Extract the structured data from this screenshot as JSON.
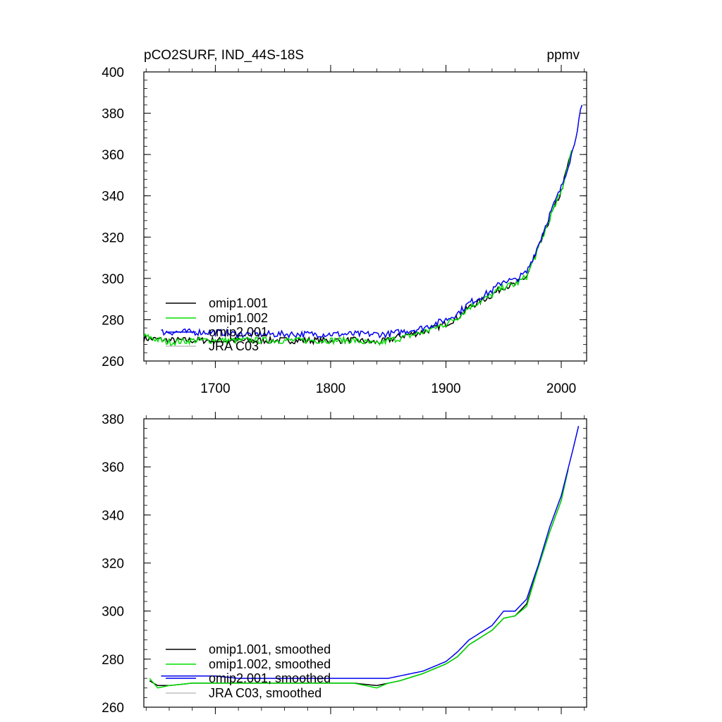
{
  "chart_data": [
    {
      "type": "line",
      "title": "pCO2SURF, IND_44S-18S",
      "units": "ppmv",
      "xlim": [
        1638,
        2022
      ],
      "ylim": [
        260,
        400
      ],
      "yticks": [
        260,
        280,
        300,
        320,
        340,
        360,
        380,
        400
      ],
      "xticks": [
        1700,
        1800,
        1900,
        2000
      ],
      "xtick_labels_shown": true,
      "legend": "bottom-left",
      "series": [
        {
          "name": "omip1.001",
          "color": "#000000",
          "x": [
            1638,
            1660,
            1680,
            1700,
            1720,
            1740,
            1760,
            1780,
            1800,
            1820,
            1840,
            1850,
            1860,
            1880,
            1900,
            1910,
            1920,
            1930,
            1940,
            1950,
            1960,
            1970,
            1980,
            1990,
            2000,
            2009
          ],
          "y": [
            271,
            270,
            270,
            270,
            270,
            270,
            270,
            270,
            270,
            270,
            269,
            270,
            272,
            274,
            278,
            281,
            286,
            289,
            292,
            296,
            297,
            301,
            314,
            329,
            342,
            362
          ]
        },
        {
          "name": "omip1.002",
          "color": "#00dd00",
          "x": [
            1638,
            1660,
            1680,
            1700,
            1720,
            1740,
            1760,
            1780,
            1800,
            1820,
            1840,
            1850,
            1860,
            1880,
            1900,
            1910,
            1920,
            1930,
            1940,
            1950,
            1960,
            1970,
            1980,
            1990,
            2000,
            2009
          ],
          "y": [
            272,
            269,
            270,
            270,
            270,
            270,
            270,
            270,
            270,
            270,
            268,
            270,
            271,
            274,
            278,
            281,
            286,
            289,
            292,
            296,
            297,
            301,
            314,
            329,
            342,
            362
          ]
        },
        {
          "name": "omip2.001",
          "color": "#0000ee",
          "x": [
            1653,
            1660,
            1680,
            1700,
            1720,
            1740,
            1760,
            1780,
            1800,
            1820,
            1840,
            1850,
            1860,
            1880,
            1900,
            1910,
            1920,
            1930,
            1940,
            1950,
            1960,
            1970,
            1980,
            1990,
            2000,
            2010,
            2018
          ],
          "y": [
            274,
            274,
            274,
            274,
            273,
            273,
            273,
            273,
            273,
            273,
            273,
            273,
            274,
            276,
            280,
            283,
            288,
            291,
            294,
            299,
            299,
            303,
            316,
            331,
            344,
            362,
            384
          ]
        },
        {
          "name": "JRA C03",
          "color": "#c0c0c0",
          "x": [],
          "y": []
        }
      ]
    },
    {
      "type": "line",
      "xlim": [
        1638,
        2022
      ],
      "ylim": [
        260,
        380
      ],
      "yticks": [
        260,
        280,
        300,
        320,
        340,
        360,
        380
      ],
      "xticks": [
        1700,
        1800,
        1900,
        2000
      ],
      "xtick_labels_shown": false,
      "legend": "bottom-left",
      "series": [
        {
          "name": "omip1.001, smoothed",
          "color": "#000000",
          "x": [
            1643,
            1650,
            1660,
            1680,
            1700,
            1720,
            1740,
            1760,
            1780,
            1800,
            1820,
            1840,
            1850,
            1860,
            1880,
            1900,
            1910,
            1920,
            1930,
            1940,
            1950,
            1960,
            1970,
            1980,
            1990,
            2000,
            2006
          ],
          "y": [
            271,
            269,
            269,
            270,
            270,
            270,
            270,
            270,
            270,
            270,
            270,
            269,
            270,
            271,
            274,
            278,
            281,
            286,
            289,
            292,
            297,
            298,
            303,
            318,
            333,
            346,
            359
          ]
        },
        {
          "name": "omip1.002, smoothed",
          "color": "#00dd00",
          "x": [
            1643,
            1650,
            1660,
            1680,
            1700,
            1720,
            1740,
            1760,
            1780,
            1800,
            1820,
            1840,
            1850,
            1860,
            1880,
            1900,
            1910,
            1920,
            1930,
            1940,
            1950,
            1960,
            1970,
            1980,
            1990,
            2000,
            2006
          ],
          "y": [
            272,
            268,
            269,
            270,
            270,
            270,
            270,
            270,
            270,
            270,
            270,
            268,
            270,
            271,
            274,
            278,
            281,
            286,
            289,
            292,
            297,
            298,
            302,
            318,
            333,
            346,
            359
          ]
        },
        {
          "name": "omip2.001, smoothed",
          "color": "#0000ee",
          "x": [
            1653,
            1660,
            1680,
            1700,
            1720,
            1740,
            1760,
            1780,
            1800,
            1820,
            1840,
            1850,
            1860,
            1880,
            1900,
            1910,
            1920,
            1930,
            1940,
            1950,
            1960,
            1970,
            1980,
            1990,
            2000,
            2010,
            2015
          ],
          "y": [
            273,
            273,
            273,
            273,
            272,
            272,
            272,
            272,
            272,
            272,
            272,
            272,
            273,
            275,
            279,
            283,
            288,
            291,
            294,
            300,
            300,
            305,
            319,
            335,
            348,
            367,
            377
          ]
        },
        {
          "name": "JRA C03, smoothed",
          "color": "#c0c0c0",
          "x": [],
          "y": []
        }
      ]
    }
  ]
}
